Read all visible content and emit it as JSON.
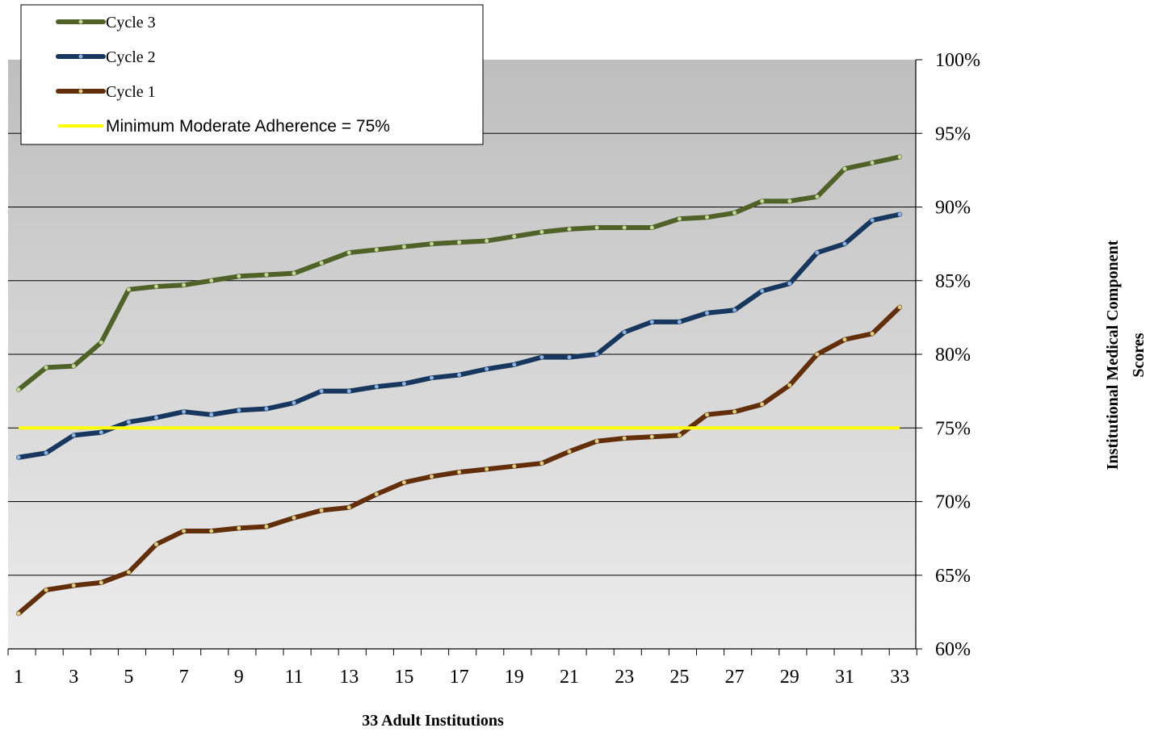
{
  "chart_data": {
    "type": "line",
    "xlabel": "33 Adult Institutions",
    "ylabel_lines": [
      "Institutional  Medical  Component",
      "Scores"
    ],
    "x": [
      1,
      2,
      3,
      4,
      5,
      6,
      7,
      8,
      9,
      10,
      11,
      12,
      13,
      14,
      15,
      16,
      17,
      18,
      19,
      20,
      21,
      22,
      23,
      24,
      25,
      26,
      27,
      28,
      29,
      30,
      31,
      32,
      33
    ],
    "x_tick_labels": [
      "1",
      "3",
      "5",
      "7",
      "9",
      "11",
      "13",
      "15",
      "17",
      "19",
      "21",
      "23",
      "25",
      "27",
      "29",
      "31",
      "33"
    ],
    "y_tick_labels": [
      "60%",
      "65%",
      "70%",
      "75%",
      "80%",
      "85%",
      "90%",
      "95%",
      "100%"
    ],
    "ylim": [
      60,
      100
    ],
    "y_tick_step": 5,
    "grid": true,
    "legend_position": "top-left",
    "series": [
      {
        "name": "Cycle 3",
        "color": "#4f6228",
        "marker_color": "#c4d79b",
        "values": [
          77.6,
          79.1,
          79.2,
          80.8,
          84.4,
          84.6,
          84.7,
          85.0,
          85.3,
          85.4,
          85.5,
          86.2,
          86.9,
          87.1,
          87.3,
          87.5,
          87.6,
          87.7,
          88.0,
          88.3,
          88.5,
          88.6,
          88.6,
          88.6,
          89.2,
          89.3,
          89.6,
          90.4,
          90.4,
          90.7,
          92.6,
          93.0,
          93.4
        ]
      },
      {
        "name": "Cycle 2",
        "color": "#17375e",
        "marker_color": "#8db3e2",
        "values": [
          73.0,
          73.3,
          74.5,
          74.7,
          75.4,
          75.7,
          76.1,
          75.9,
          76.2,
          76.3,
          76.7,
          77.5,
          77.5,
          77.8,
          78.0,
          78.4,
          78.6,
          79.0,
          79.3,
          79.8,
          79.8,
          80.0,
          81.5,
          82.2,
          82.2,
          82.8,
          83.0,
          84.3,
          84.8,
          86.9,
          87.5,
          89.1,
          89.5
        ]
      },
      {
        "name": "Cycle 1",
        "color": "#632f0a",
        "marker_color": "#d8d080",
        "values": [
          62.4,
          64.0,
          64.3,
          64.5,
          65.2,
          67.1,
          68.0,
          68.0,
          68.2,
          68.3,
          68.9,
          69.4,
          69.6,
          70.5,
          71.3,
          71.7,
          72.0,
          72.2,
          72.4,
          72.6,
          73.4,
          74.1,
          74.3,
          74.4,
          74.5,
          75.9,
          76.1,
          76.6,
          77.9,
          80.0,
          81.0,
          81.4,
          83.2
        ]
      }
    ],
    "reference_line": {
      "label": "Minimum Moderate Adherence = 75%",
      "value": 75,
      "color": "#ffff00"
    }
  }
}
